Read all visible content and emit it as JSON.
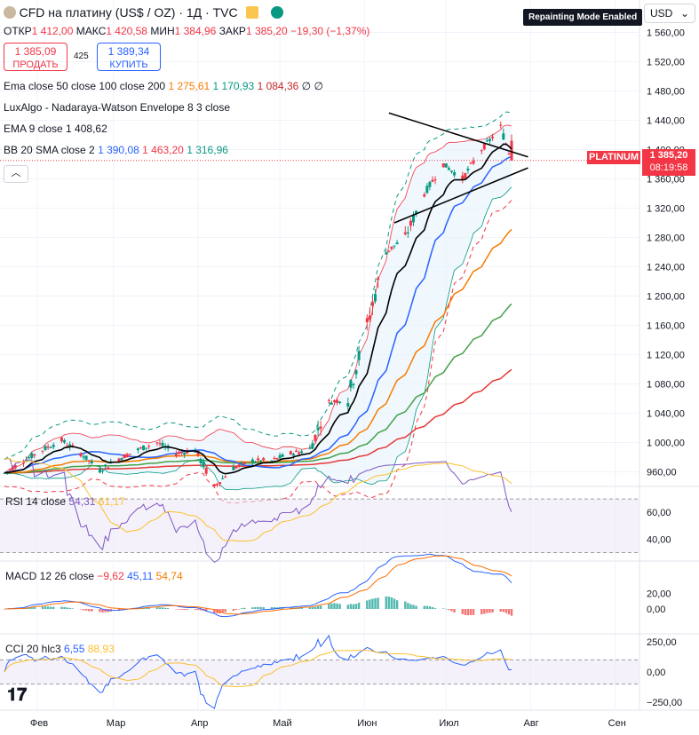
{
  "header": {
    "symbol_title": "CFD на платину (US$ / OZ) · 1Д · TVC",
    "open_label": "ОТКР",
    "open_value": "1 412,00",
    "high_label": "МАКС",
    "high_value": "1 420,58",
    "low_label": "МИН",
    "low_value": "1 384,96",
    "close_label": "ЗАКР",
    "close_value": "1 385,20",
    "change_value": "−19,30 (−1,37%)"
  },
  "trade": {
    "sell_price": "1 385,09",
    "sell_label": "ПРОДАТЬ",
    "spread": "425",
    "buy_price": "1 389,34",
    "buy_label": "КУПИТЬ"
  },
  "indicators": [
    {
      "label": "Ema close 50 close 100 close 200",
      "v1": "1 275,61",
      "v2": "1 170,93",
      "v3": "1 084,36",
      "v4": "∅",
      "v5": "∅"
    },
    {
      "label": "LuxAlgo - Nadaraya-Watson Envelope 8 3 close"
    },
    {
      "label": "EMA 9 close",
      "v1": "1 408,62"
    },
    {
      "label": "BB 20 SMA close 2",
      "v1": "1 390,08",
      "v2": "1 463,20",
      "v3": "1 316,96"
    }
  ],
  "tooltip": "Repainting Mode Enabled",
  "currency": "USD",
  "price_tag": {
    "name": "PLATINUM",
    "price": "1 385,20",
    "countdown": "08:19:58"
  },
  "price_axis_labels": [
    "1 560,00",
    "1 520,00",
    "1 480,00",
    "1 440,00",
    "1 400,00",
    "1 360,00",
    "1 320,00",
    "1 280,00",
    "1 240,00",
    "1 200,00",
    "1 160,00",
    "1 120,00",
    "1 080,00",
    "1 040,00",
    "1 000,00",
    "960,00"
  ],
  "rsi": {
    "label": "RSI 14 close",
    "v1": "54,31",
    "v2": "61,17",
    "axis": [
      "60,00",
      "40,00"
    ]
  },
  "macd": {
    "label": "MACD 12 26 close",
    "v1": "−9,62",
    "v2": "45,11",
    "v3": "54,74",
    "axis": [
      "20,00",
      "0,00"
    ]
  },
  "cci": {
    "label": "CCI 20 hlc3",
    "v1": "6,55",
    "v2": "88,93",
    "axis": [
      "250,00",
      "0,00",
      "−250,00"
    ]
  },
  "time_axis": [
    "Фев",
    "Мар",
    "Апр",
    "Май",
    "Июн",
    "Июл",
    "Авг",
    "Сен"
  ],
  "colors": {
    "up": "#089981",
    "down": "#f23645",
    "ema9": "#000000",
    "bb_basis": "#2962ff",
    "ema50": "#f57c00",
    "ema100": "#43a047",
    "ema200": "#e53935",
    "rsi": "#7e57c2",
    "rsi_ma": "#fbc02d",
    "macd": "#2962ff",
    "signal": "#ff6d00",
    "cci": "#2962ff",
    "cci_ma": "#fbc02d"
  },
  "chart_data": {
    "type": "candlestick",
    "instrument": "Platinum CFD, daily",
    "y_range": [
      940,
      1580
    ],
    "close_path": [
      {
        "date": "2025-01-20",
        "close": 958
      },
      {
        "date": "2025-01-27",
        "close": 975
      },
      {
        "date": "2025-02-03",
        "close": 990
      },
      {
        "date": "2025-02-10",
        "close": 1003
      },
      {
        "date": "2025-02-17",
        "close": 985
      },
      {
        "date": "2025-02-24",
        "close": 962
      },
      {
        "date": "2025-03-03",
        "close": 978
      },
      {
        "date": "2025-03-10",
        "close": 990
      },
      {
        "date": "2025-03-17",
        "close": 1000
      },
      {
        "date": "2025-03-24",
        "close": 985
      },
      {
        "date": "2025-03-31",
        "close": 990
      },
      {
        "date": "2025-04-07",
        "close": 940
      },
      {
        "date": "2025-04-14",
        "close": 965
      },
      {
        "date": "2025-04-21",
        "close": 975
      },
      {
        "date": "2025-04-28",
        "close": 975
      },
      {
        "date": "2025-05-05",
        "close": 985
      },
      {
        "date": "2025-05-12",
        "close": 990
      },
      {
        "date": "2025-05-19",
        "close": 1055
      },
      {
        "date": "2025-05-26",
        "close": 1060
      },
      {
        "date": "2025-06-02",
        "close": 1160
      },
      {
        "date": "2025-06-09",
        "close": 1260
      },
      {
        "date": "2025-06-16",
        "close": 1280
      },
      {
        "date": "2025-06-23",
        "close": 1340
      },
      {
        "date": "2025-06-30",
        "close": 1380
      },
      {
        "date": "2025-07-07",
        "close": 1360
      },
      {
        "date": "2025-07-14",
        "close": 1400
      },
      {
        "date": "2025-07-21",
        "close": 1430
      },
      {
        "date": "2025-07-25",
        "close": 1385.2
      }
    ],
    "last": {
      "open": 1412.0,
      "high": 1420.58,
      "low": 1384.96,
      "close": 1385.2
    },
    "series": [
      {
        "name": "EMA 9",
        "last": 1408.62
      },
      {
        "name": "EMA 50",
        "last": 1275.61
      },
      {
        "name": "EMA 100",
        "last": 1170.93
      },
      {
        "name": "EMA 200",
        "last": 1084.36
      },
      {
        "name": "BB basis",
        "last": 1390.08
      },
      {
        "name": "BB upper",
        "last": 1463.2
      },
      {
        "name": "BB lower",
        "last": 1316.96
      }
    ],
    "rsi": {
      "last": 54.31,
      "ma": 61.17,
      "range": [
        30,
        70
      ]
    },
    "macd": {
      "last": -9.62,
      "macd": 45.11,
      "signal": 54.74
    },
    "cci": {
      "last": 6.55,
      "ma": 88.93
    }
  }
}
